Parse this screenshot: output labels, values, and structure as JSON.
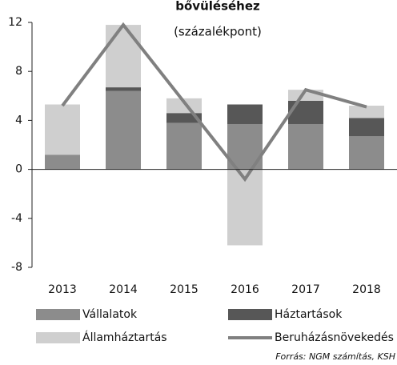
{
  "chart_data": {
    "type": "bar",
    "title": "bővüléséhez",
    "subtitle": "(százalékpont)",
    "source": "Forrás: NGM számítás, KSH",
    "categories": [
      "2013",
      "2014",
      "2015",
      "2016",
      "2017",
      "2018"
    ],
    "series": [
      {
        "name": "Vállalatok",
        "color": "#8c8c8c",
        "kind": "bar",
        "values": [
          1.2,
          6.4,
          3.8,
          3.7,
          3.7,
          2.7
        ]
      },
      {
        "name": "Háztartások",
        "color": "#575757",
        "kind": "bar",
        "values": [
          0,
          0.3,
          0.8,
          1.6,
          1.9,
          1.5
        ]
      },
      {
        "name": "Államháztartás",
        "color": "#cfcfcf",
        "kind": "bar",
        "values": [
          4.1,
          5.1,
          1.2,
          -6.2,
          0.9,
          1.0
        ]
      },
      {
        "name": "Beruházásnövekedés",
        "color": "#808080",
        "kind": "line",
        "values": [
          5.2,
          11.8,
          5.5,
          -0.8,
          6.5,
          5.1
        ]
      }
    ],
    "ylim": [
      -8,
      12
    ],
    "yticks": [
      -8,
      -4,
      0,
      4,
      8,
      12
    ]
  }
}
